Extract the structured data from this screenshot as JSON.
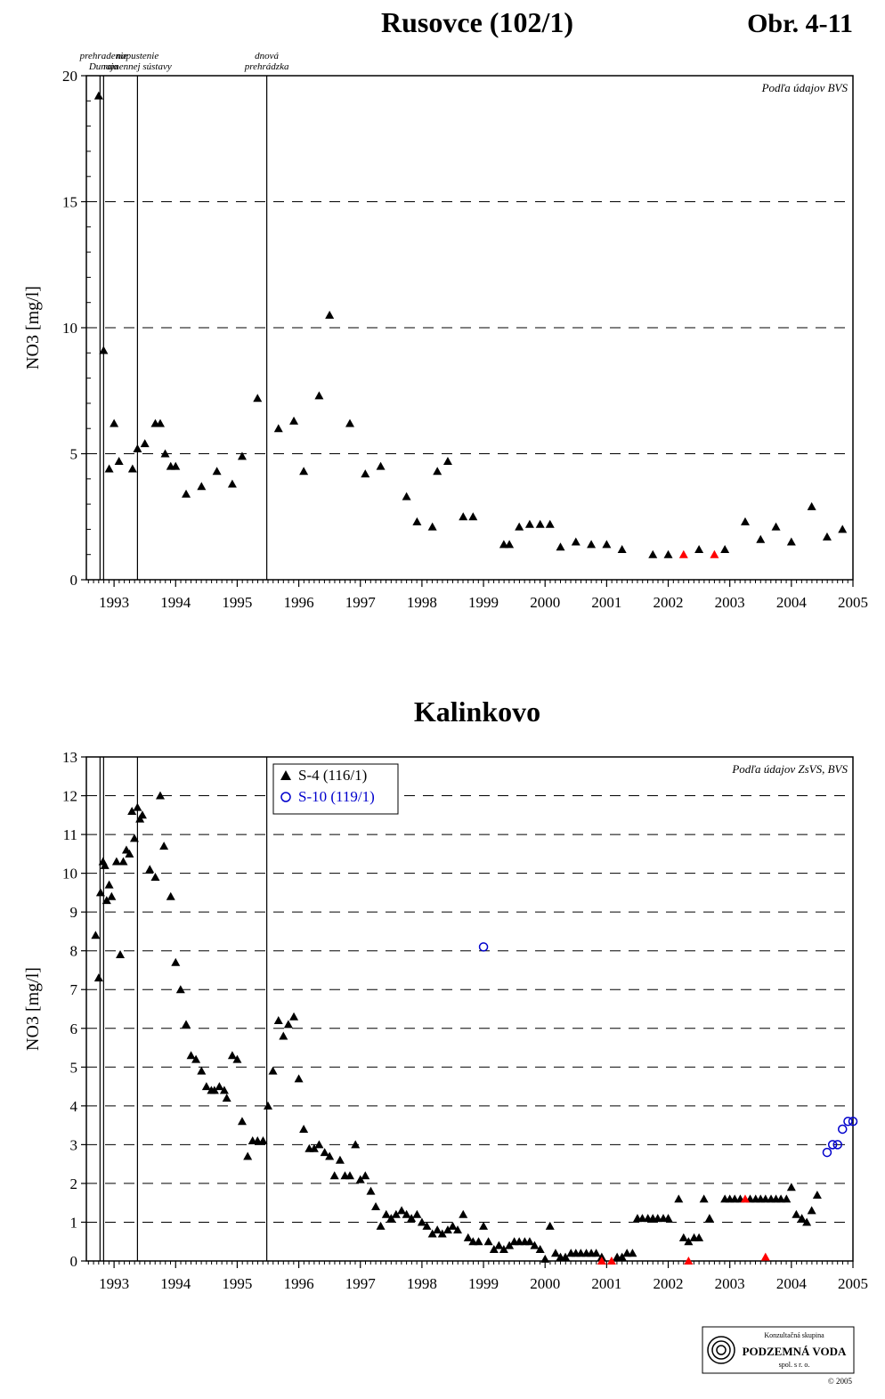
{
  "page": {
    "figure_number": "Obr. 4-11",
    "logo": {
      "line1": "Konzultačná skupina",
      "line2": "PODZEMNÁ VODA",
      "line3": "spol. s r. o.",
      "copyright": "© 2005"
    }
  },
  "events": [
    {
      "date": 1992.83,
      "label_lines": [
        "prehradenie",
        "Dunaja"
      ]
    },
    {
      "date": 1993.38,
      "label_lines": [
        "napustenie",
        "ramennej sústavy"
      ]
    },
    {
      "date": 1995.48,
      "label_lines": [
        "dnová",
        "prehrádzka"
      ]
    }
  ],
  "colors": {
    "black": "#000000",
    "red": "#ff0000",
    "blue": "#0000cc"
  },
  "chart_data": [
    {
      "type": "scatter",
      "title": "Rusovce (102/1)",
      "source_note": "Podľa údajov BVS",
      "ylabel": "NO3 [mg/l]",
      "xlabel": "",
      "xlim": [
        1992.55,
        2005.0
      ],
      "ylim": [
        0,
        20
      ],
      "x_ticks": [
        "1993",
        "1994",
        "1995",
        "1996",
        "1997",
        "1998",
        "1999",
        "2000",
        "2001",
        "2002",
        "2003",
        "2004",
        "2005"
      ],
      "y_ticks": [
        0,
        5,
        10,
        15,
        20
      ],
      "grid": "dashed horizontal",
      "legend": "none",
      "series": [
        {
          "marker": "filled-triangle",
          "color": "#000000",
          "points": [
            [
              1992.75,
              19.2
            ],
            [
              1992.83,
              9.1
            ],
            [
              1992.92,
              4.4
            ],
            [
              1993.0,
              6.2
            ],
            [
              1993.08,
              4.7
            ],
            [
              1993.3,
              4.4
            ],
            [
              1993.38,
              5.2
            ],
            [
              1993.5,
              5.4
            ],
            [
              1993.67,
              6.2
            ],
            [
              1993.75,
              6.2
            ],
            [
              1993.83,
              5.0
            ],
            [
              1993.92,
              4.5
            ],
            [
              1994.0,
              4.5
            ],
            [
              1994.17,
              3.4
            ],
            [
              1994.42,
              3.7
            ],
            [
              1994.67,
              4.3
            ],
            [
              1994.92,
              3.8
            ],
            [
              1995.08,
              4.9
            ],
            [
              1995.33,
              7.2
            ],
            [
              1995.67,
              6.0
            ],
            [
              1995.92,
              6.3
            ],
            [
              1996.08,
              4.3
            ],
            [
              1996.33,
              7.3
            ],
            [
              1996.5,
              10.5
            ],
            [
              1996.83,
              6.2
            ],
            [
              1997.08,
              4.2
            ],
            [
              1997.33,
              4.5
            ],
            [
              1997.75,
              3.3
            ],
            [
              1997.92,
              2.3
            ],
            [
              1998.17,
              2.1
            ],
            [
              1998.25,
              4.3
            ],
            [
              1998.42,
              4.7
            ],
            [
              1998.67,
              2.5
            ],
            [
              1998.83,
              2.5
            ],
            [
              1999.33,
              1.4
            ],
            [
              1999.42,
              1.4
            ],
            [
              1999.58,
              2.1
            ],
            [
              1999.75,
              2.2
            ],
            [
              1999.92,
              2.2
            ],
            [
              2000.08,
              2.2
            ],
            [
              2000.25,
              1.3
            ],
            [
              2000.5,
              1.5
            ],
            [
              2000.75,
              1.4
            ],
            [
              2001.0,
              1.4
            ],
            [
              2001.25,
              1.2
            ],
            [
              2001.75,
              1.0
            ],
            [
              2002.0,
              1.0
            ],
            [
              2002.5,
              1.2
            ],
            [
              2002.92,
              1.2
            ],
            [
              2003.25,
              2.3
            ],
            [
              2003.5,
              1.6
            ],
            [
              2003.75,
              2.1
            ],
            [
              2004.0,
              1.5
            ],
            [
              2004.33,
              2.9
            ],
            [
              2004.58,
              1.7
            ],
            [
              2004.83,
              2.0
            ]
          ]
        },
        {
          "marker": "filled-triangle",
          "color": "#ff0000",
          "points": [
            [
              2002.25,
              1.0
            ],
            [
              2002.75,
              1.0
            ]
          ]
        }
      ]
    },
    {
      "type": "scatter",
      "title": "Kalinkovo",
      "source_note": "Podľa údajov ZsVS, BVS",
      "ylabel": "NO3 [mg/l]",
      "xlabel": "",
      "xlim": [
        1992.55,
        2005.0
      ],
      "ylim": [
        0,
        13
      ],
      "x_ticks": [
        "1993",
        "1994",
        "1995",
        "1996",
        "1997",
        "1998",
        "1999",
        "2000",
        "2001",
        "2002",
        "2003",
        "2004",
        "2005"
      ],
      "y_ticks": [
        0,
        1,
        2,
        3,
        4,
        5,
        6,
        7,
        8,
        9,
        10,
        11,
        12,
        13
      ],
      "grid": "dashed horizontal",
      "legend": "top-left",
      "series": [
        {
          "name": "S-4 (116/1)",
          "marker": "filled-triangle",
          "color": "#000000",
          "points": [
            [
              1992.7,
              8.4
            ],
            [
              1992.75,
              7.3
            ],
            [
              1992.78,
              9.5
            ],
            [
              1992.82,
              10.3
            ],
            [
              1992.85,
              10.2
            ],
            [
              1992.88,
              9.3
            ],
            [
              1992.92,
              9.7
            ],
            [
              1992.96,
              9.4
            ],
            [
              1993.04,
              10.3
            ],
            [
              1993.1,
              7.9
            ],
            [
              1993.15,
              10.3
            ],
            [
              1993.2,
              10.6
            ],
            [
              1993.25,
              10.5
            ],
            [
              1993.29,
              11.6
            ],
            [
              1993.33,
              10.9
            ],
            [
              1993.38,
              11.7
            ],
            [
              1993.42,
              11.4
            ],
            [
              1993.46,
              11.5
            ],
            [
              1993.58,
              10.1
            ],
            [
              1993.67,
              9.9
            ],
            [
              1993.75,
              12.0
            ],
            [
              1993.81,
              10.7
            ],
            [
              1993.92,
              9.4
            ],
            [
              1994.0,
              7.7
            ],
            [
              1994.08,
              7.0
            ],
            [
              1994.17,
              6.1
            ],
            [
              1994.25,
              5.3
            ],
            [
              1994.33,
              5.2
            ],
            [
              1994.42,
              4.9
            ],
            [
              1994.5,
              4.5
            ],
            [
              1994.58,
              4.4
            ],
            [
              1994.63,
              4.4
            ],
            [
              1994.71,
              4.5
            ],
            [
              1994.79,
              4.4
            ],
            [
              1994.83,
              4.2
            ],
            [
              1994.92,
              5.3
            ],
            [
              1995.0,
              5.2
            ],
            [
              1995.08,
              3.6
            ],
            [
              1995.17,
              2.7
            ],
            [
              1995.25,
              3.1
            ],
            [
              1995.33,
              3.1
            ],
            [
              1995.42,
              3.1
            ],
            [
              1995.5,
              4.0
            ],
            [
              1995.58,
              4.9
            ],
            [
              1995.67,
              6.2
            ],
            [
              1995.75,
              5.8
            ],
            [
              1995.83,
              6.1
            ],
            [
              1995.92,
              6.3
            ],
            [
              1996.0,
              4.7
            ],
            [
              1996.08,
              3.4
            ],
            [
              1996.17,
              2.9
            ],
            [
              1996.25,
              2.9
            ],
            [
              1996.33,
              3.0
            ],
            [
              1996.42,
              2.8
            ],
            [
              1996.5,
              2.7
            ],
            [
              1996.58,
              2.2
            ],
            [
              1996.67,
              2.6
            ],
            [
              1996.75,
              2.2
            ],
            [
              1996.83,
              2.2
            ],
            [
              1996.92,
              3.0
            ],
            [
              1997.0,
              2.1
            ],
            [
              1997.08,
              2.2
            ],
            [
              1997.17,
              1.8
            ],
            [
              1997.25,
              1.4
            ],
            [
              1997.33,
              0.9
            ],
            [
              1997.42,
              1.2
            ],
            [
              1997.5,
              1.1
            ],
            [
              1997.58,
              1.2
            ],
            [
              1997.67,
              1.3
            ],
            [
              1997.75,
              1.2
            ],
            [
              1997.83,
              1.1
            ],
            [
              1997.92,
              1.2
            ],
            [
              1998.0,
              1.0
            ],
            [
              1998.08,
              0.9
            ],
            [
              1998.17,
              0.7
            ],
            [
              1998.25,
              0.8
            ],
            [
              1998.33,
              0.7
            ],
            [
              1998.42,
              0.8
            ],
            [
              1998.5,
              0.9
            ],
            [
              1998.58,
              0.8
            ],
            [
              1998.67,
              1.2
            ],
            [
              1998.75,
              0.6
            ],
            [
              1998.83,
              0.5
            ],
            [
              1998.92,
              0.5
            ],
            [
              1999.0,
              0.9
            ],
            [
              1999.08,
              0.5
            ],
            [
              1999.17,
              0.3
            ],
            [
              1999.25,
              0.4
            ],
            [
              1999.33,
              0.3
            ],
            [
              1999.42,
              0.4
            ],
            [
              1999.5,
              0.5
            ],
            [
              1999.58,
              0.5
            ],
            [
              1999.67,
              0.5
            ],
            [
              1999.75,
              0.5
            ],
            [
              1999.83,
              0.4
            ],
            [
              1999.92,
              0.3
            ],
            [
              2000.0,
              0.05
            ],
            [
              2000.08,
              0.9
            ],
            [
              2000.17,
              0.2
            ],
            [
              2000.25,
              0.1
            ],
            [
              2000.33,
              0.1
            ],
            [
              2000.42,
              0.2
            ],
            [
              2000.5,
              0.2
            ],
            [
              2000.58,
              0.2
            ],
            [
              2000.67,
              0.2
            ],
            [
              2000.75,
              0.2
            ],
            [
              2000.83,
              0.2
            ],
            [
              2000.92,
              0.1
            ],
            [
              2001.17,
              0.1
            ],
            [
              2001.25,
              0.1
            ],
            [
              2001.33,
              0.2
            ],
            [
              2001.42,
              0.2
            ],
            [
              2001.5,
              1.1
            ],
            [
              2001.58,
              1.1
            ],
            [
              2001.67,
              1.1
            ],
            [
              2001.75,
              1.1
            ],
            [
              2001.83,
              1.1
            ],
            [
              2001.92,
              1.1
            ],
            [
              2002.0,
              1.1
            ],
            [
              2002.17,
              1.6
            ],
            [
              2002.25,
              0.6
            ],
            [
              2002.33,
              0.5
            ],
            [
              2002.42,
              0.6
            ],
            [
              2002.5,
              0.6
            ],
            [
              2002.58,
              1.6
            ],
            [
              2002.67,
              1.1
            ],
            [
              2002.92,
              1.6
            ],
            [
              2003.0,
              1.6
            ],
            [
              2003.08,
              1.6
            ],
            [
              2003.17,
              1.6
            ],
            [
              2003.33,
              1.6
            ],
            [
              2003.42,
              1.6
            ],
            [
              2003.5,
              1.6
            ],
            [
              2003.58,
              1.6
            ],
            [
              2003.67,
              1.6
            ],
            [
              2003.75,
              1.6
            ],
            [
              2003.83,
              1.6
            ],
            [
              2003.92,
              1.6
            ],
            [
              2004.0,
              1.9
            ],
            [
              2004.08,
              1.2
            ],
            [
              2004.17,
              1.1
            ],
            [
              2004.25,
              1.0
            ],
            [
              2004.33,
              1.3
            ],
            [
              2004.42,
              1.7
            ]
          ]
        },
        {
          "marker": "filled-triangle",
          "color": "#ff0000",
          "points": [
            [
              2000.92,
              0.0
            ],
            [
              2001.08,
              0.0
            ],
            [
              2002.33,
              0.0
            ],
            [
              2003.25,
              1.6
            ],
            [
              2003.58,
              0.1
            ]
          ]
        },
        {
          "name": "S-10 (119/1)",
          "marker": "open-circle",
          "color": "#0000cc",
          "points": [
            [
              1999.0,
              8.1
            ],
            [
              2004.58,
              2.8
            ],
            [
              2004.67,
              3.0
            ],
            [
              2004.75,
              3.0
            ],
            [
              2004.83,
              3.4
            ],
            [
              2004.92,
              3.6
            ],
            [
              2005.0,
              3.6
            ]
          ]
        }
      ]
    }
  ]
}
